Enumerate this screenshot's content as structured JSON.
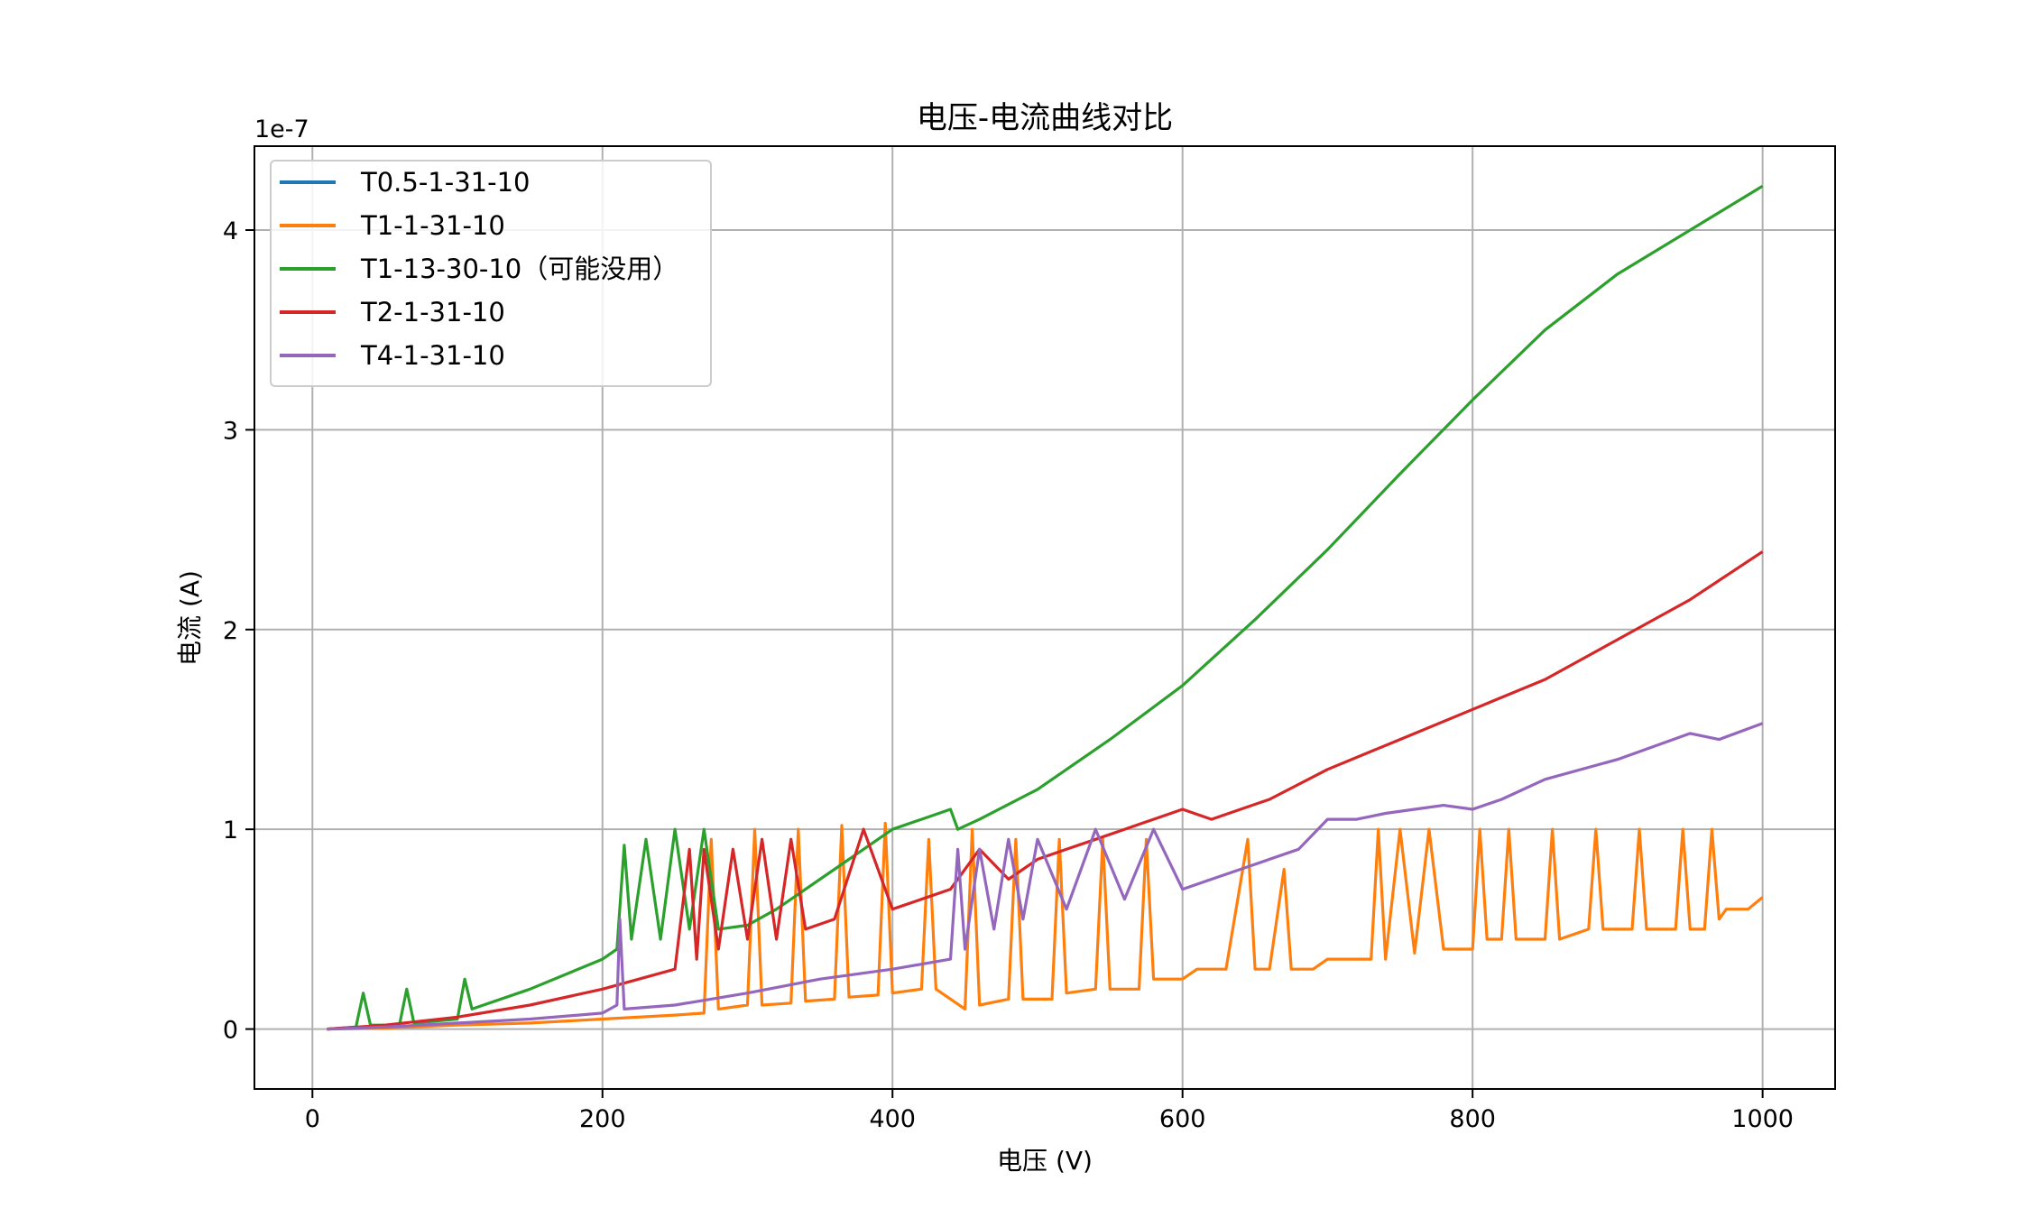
{
  "chart_data": {
    "type": "line",
    "title": "电压-电流曲线对比",
    "xlabel": "电压 (V)",
    "ylabel": "电流 (A)",
    "y_offset_label": "1e-7",
    "xlim": [
      -40,
      1050
    ],
    "ylim": [
      -3e-08,
      4.42e-07
    ],
    "x_ticks": [
      0,
      200,
      400,
      600,
      800,
      1000
    ],
    "x_tick_labels": [
      "0",
      "200",
      "400",
      "600",
      "800",
      "1000"
    ],
    "y_ticks": [
      0,
      1e-07,
      2e-07,
      3e-07,
      4e-07
    ],
    "y_tick_labels": [
      "0",
      "1",
      "2",
      "3",
      "4"
    ],
    "grid": true,
    "legend_position": "top-left",
    "series": [
      {
        "name": "T0.5-1-31-10",
        "color": "#1f77b4",
        "x": [],
        "y": []
      },
      {
        "name": "T1-1-31-10",
        "color": "#ff7f0e",
        "x": [
          10,
          50,
          100,
          150,
          200,
          250,
          270,
          275,
          280,
          300,
          305,
          310,
          330,
          335,
          340,
          360,
          365,
          370,
          390,
          395,
          400,
          420,
          425,
          430,
          450,
          455,
          460,
          480,
          485,
          490,
          510,
          515,
          520,
          540,
          545,
          550,
          570,
          575,
          580,
          600,
          610,
          630,
          645,
          650,
          660,
          670,
          675,
          690,
          700,
          720,
          730,
          735,
          740,
          750,
          760,
          770,
          780,
          790,
          800,
          805,
          810,
          820,
          825,
          830,
          850,
          855,
          860,
          880,
          885,
          890,
          910,
          915,
          920,
          940,
          945,
          950,
          960,
          965,
          970,
          975,
          990,
          1000
        ],
        "y": [
          0,
          5e-10,
          2e-09,
          3e-09,
          5e-09,
          7e-09,
          8e-09,
          9.5e-08,
          1e-08,
          1.2e-08,
          1e-07,
          1.2e-08,
          1.3e-08,
          1e-07,
          1.4e-08,
          1.5e-08,
          1.02e-07,
          1.6e-08,
          1.7e-08,
          1.03e-07,
          1.8e-08,
          2e-08,
          9.5e-08,
          2e-08,
          1e-08,
          1e-07,
          1.2e-08,
          1.5e-08,
          9.5e-08,
          1.5e-08,
          1.5e-08,
          9.5e-08,
          1.8e-08,
          2e-08,
          9.5e-08,
          2e-08,
          2e-08,
          9.5e-08,
          2.5e-08,
          2.5e-08,
          3e-08,
          3e-08,
          9.5e-08,
          3e-08,
          3e-08,
          8e-08,
          3e-08,
          3e-08,
          3.5e-08,
          3.5e-08,
          3.5e-08,
          1e-07,
          3.5e-08,
          1e-07,
          3.8e-08,
          1e-07,
          4e-08,
          4e-08,
          4e-08,
          1e-07,
          4.5e-08,
          4.5e-08,
          1e-07,
          4.5e-08,
          4.5e-08,
          1e-07,
          4.5e-08,
          5e-08,
          1e-07,
          5e-08,
          5e-08,
          1e-07,
          5e-08,
          5e-08,
          1e-07,
          5e-08,
          5e-08,
          1e-07,
          5.5e-08,
          6e-08,
          6e-08,
          6.6e-08
        ]
      },
      {
        "name": "T1-13-30-10（可能没用）",
        "color": "#2ca02c",
        "x": [
          10,
          30,
          35,
          40,
          60,
          65,
          70,
          100,
          105,
          110,
          150,
          200,
          210,
          215,
          220,
          230,
          240,
          250,
          260,
          270,
          280,
          300,
          320,
          340,
          360,
          380,
          400,
          420,
          440,
          445,
          460,
          500,
          550,
          600,
          650,
          700,
          750,
          800,
          850,
          900,
          950,
          1000
        ],
        "y": [
          0,
          1e-09,
          1.8e-08,
          2e-09,
          2e-09,
          2e-08,
          3e-09,
          5e-09,
          2.5e-08,
          1e-08,
          2e-08,
          3.5e-08,
          4e-08,
          9.2e-08,
          4.5e-08,
          9.5e-08,
          4.5e-08,
          1e-07,
          5e-08,
          1e-07,
          5e-08,
          5.2e-08,
          6e-08,
          7e-08,
          8e-08,
          9e-08,
          1e-07,
          1.05e-07,
          1.1e-07,
          1e-07,
          1.05e-07,
          1.2e-07,
          1.45e-07,
          1.72e-07,
          2.05e-07,
          2.4e-07,
          2.78e-07,
          3.15e-07,
          3.5e-07,
          3.78e-07,
          4e-07,
          4.22e-07
        ]
      },
      {
        "name": "T2-1-31-10",
        "color": "#d62728",
        "x": [
          10,
          50,
          100,
          150,
          200,
          250,
          260,
          265,
          270,
          280,
          290,
          300,
          310,
          320,
          330,
          340,
          360,
          380,
          400,
          420,
          440,
          460,
          480,
          500,
          520,
          540,
          560,
          580,
          600,
          620,
          640,
          660,
          700,
          750,
          800,
          850,
          900,
          950,
          1000
        ],
        "y": [
          0,
          2e-09,
          6e-09,
          1.2e-08,
          2e-08,
          3e-08,
          9e-08,
          3.5e-08,
          9e-08,
          4e-08,
          9e-08,
          4.5e-08,
          9.5e-08,
          4.5e-08,
          9.5e-08,
          5e-08,
          5.5e-08,
          1e-07,
          6e-08,
          6.5e-08,
          7e-08,
          9e-08,
          7.5e-08,
          8.5e-08,
          9e-08,
          9.5e-08,
          1e-07,
          1.05e-07,
          1.1e-07,
          1.05e-07,
          1.1e-07,
          1.15e-07,
          1.3e-07,
          1.45e-07,
          1.6e-07,
          1.75e-07,
          1.95e-07,
          2.15e-07,
          2.39e-07
        ]
      },
      {
        "name": "T4-1-31-10",
        "color": "#9467bd",
        "x": [
          10,
          50,
          100,
          150,
          200,
          210,
          212,
          215,
          250,
          300,
          350,
          400,
          440,
          445,
          450,
          460,
          470,
          480,
          490,
          500,
          520,
          540,
          560,
          580,
          600,
          620,
          640,
          660,
          680,
          700,
          720,
          740,
          760,
          780,
          800,
          820,
          850,
          900,
          950,
          970,
          1000
        ],
        "y": [
          0,
          1e-09,
          3e-09,
          5e-09,
          8e-09,
          1.2e-08,
          5.5e-08,
          1e-08,
          1.2e-08,
          1.8e-08,
          2.5e-08,
          3e-08,
          3.5e-08,
          9e-08,
          4e-08,
          9e-08,
          5e-08,
          9.5e-08,
          5.5e-08,
          9.5e-08,
          6e-08,
          1e-07,
          6.5e-08,
          1e-07,
          7e-08,
          7.5e-08,
          8e-08,
          8.5e-08,
          9e-08,
          1.05e-07,
          1.05e-07,
          1.08e-07,
          1.1e-07,
          1.12e-07,
          1.1e-07,
          1.15e-07,
          1.25e-07,
          1.35e-07,
          1.48e-07,
          1.45e-07,
          1.53e-07
        ]
      }
    ]
  }
}
